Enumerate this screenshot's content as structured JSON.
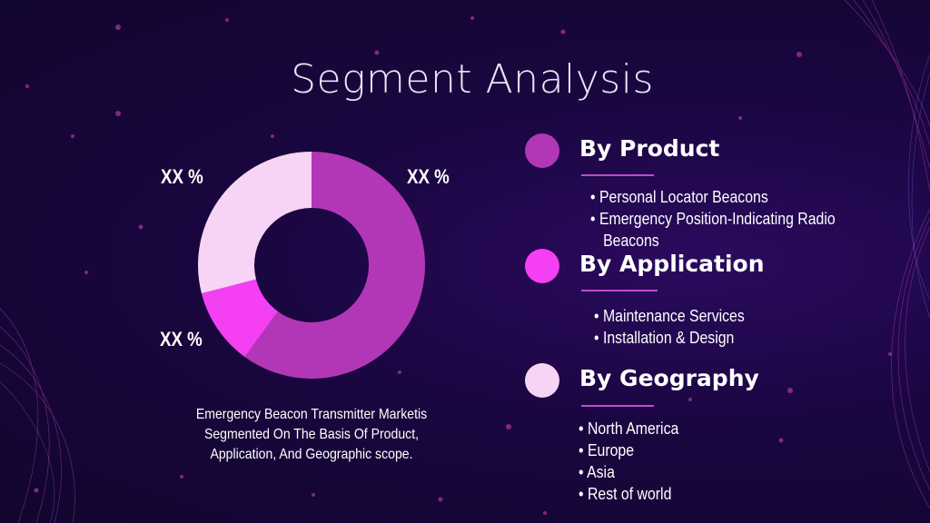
{
  "title": "Segment Analysis",
  "chart_data": {
    "type": "pie",
    "categories": [
      "By Product",
      "By Application",
      "By Geography"
    ],
    "values": [
      60,
      11,
      29
    ],
    "colors": [
      "#b237b6",
      "#f43ff2",
      "#f7d3f5"
    ],
    "data_labels": [
      "XX %",
      "XX %",
      "XX %"
    ]
  },
  "caption": "Emergency Beacon Transmitter Marketis Segmented On The Basis Of Product, Application, And Geographic scope.",
  "segments": [
    {
      "title": "By Product",
      "color": "#b237b6",
      "items": [
        "• Personal Locator Beacons",
        "• Emergency Position-Indicating Radio",
        "Beacons"
      ]
    },
    {
      "title": "By Application",
      "color": "#f43ff2",
      "items": [
        "• Maintenance Services",
        "• Installation & Design"
      ]
    },
    {
      "title": "By Geography",
      "color": "#f7d3f5",
      "items": [
        "• North America",
        "• Europe",
        "• Asia",
        "• Rest of world"
      ]
    }
  ]
}
